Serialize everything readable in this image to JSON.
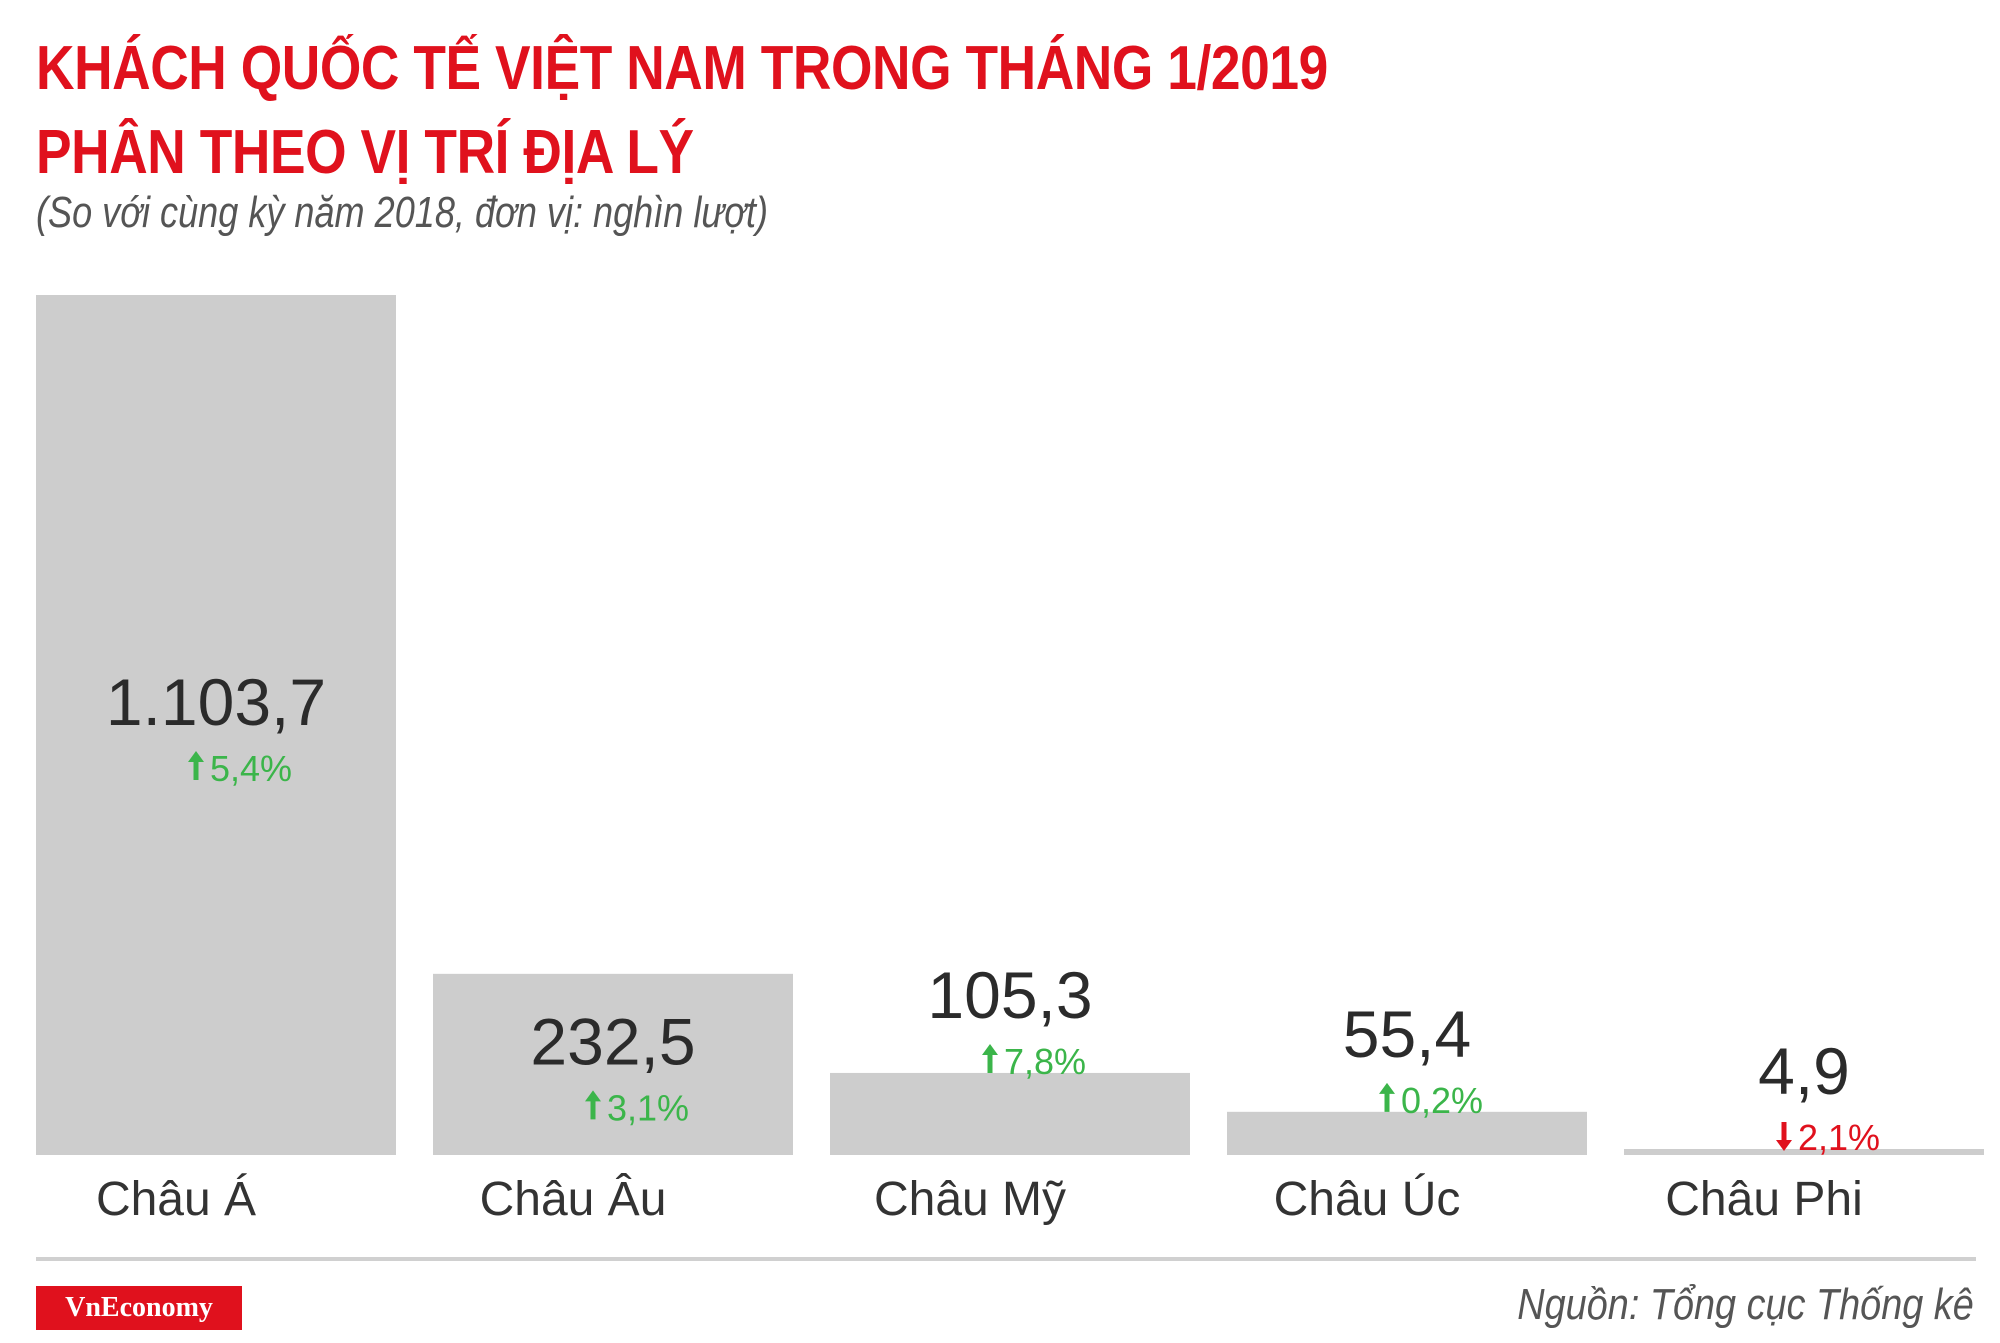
{
  "title_line1": "KHÁCH QUỐC TẾ VIỆT NAM TRONG THÁNG 1/2019",
  "title_line2": "PHÂN THEO VỊ TRÍ ĐỊA LÝ",
  "subtitle": "(So với cùng kỳ năm 2018, đơn vị: nghìn lượt)",
  "logo_text": "VnEconomy",
  "source": "Nguồn: Tổng cục Thống kê",
  "colors": {
    "title": "#e0111d",
    "bar": "#cdcdcd",
    "up": "#3bb54a",
    "down": "#e0111d",
    "value": "#2b2b2b"
  },
  "chart_data": {
    "type": "bar",
    "categories": [
      "Châu Á",
      "Châu Âu",
      "Châu Mỹ",
      "Châu Úc",
      "Châu Phi"
    ],
    "values": [
      1103.7,
      232.5,
      105.3,
      55.4,
      4.9
    ],
    "value_labels": [
      "1.103,7",
      "232,5",
      "105,3",
      "55,4",
      "4,9"
    ],
    "changes": [
      {
        "direction": "up",
        "label": "5,4%"
      },
      {
        "direction": "up",
        "label": "3,1%"
      },
      {
        "direction": "up",
        "label": "7,8%"
      },
      {
        "direction": "up",
        "label": "0,2%"
      },
      {
        "direction": "down",
        "label": "2,1%"
      }
    ],
    "title": "KHÁCH QUỐC TẾ VIỆT NAM TRONG THÁNG 1/2019 PHÂN THEO VỊ TRÍ ĐỊA LÝ",
    "ylabel": "",
    "ylim": [
      0,
      1103.7
    ],
    "grid": false,
    "legend": "none"
  }
}
